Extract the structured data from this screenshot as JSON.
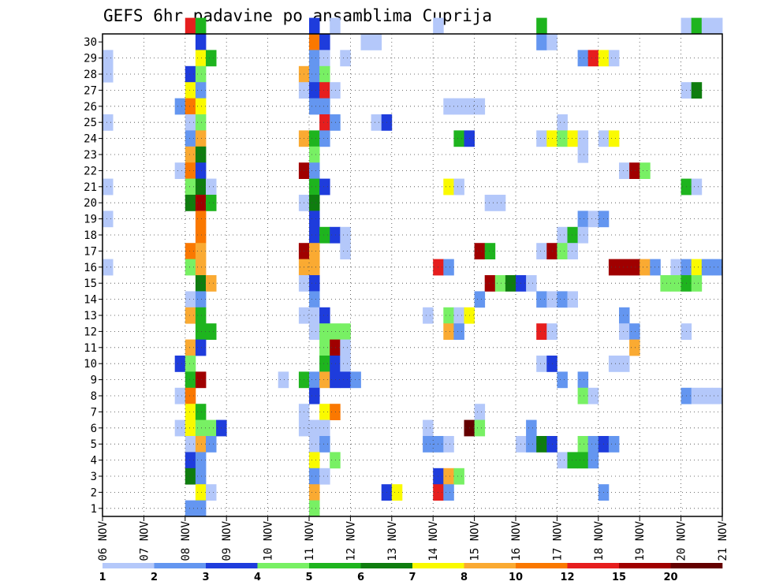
{
  "chart_data": {
    "type": "heatmap",
    "title": "GEFS 6hr padavine po ansamblima Cuprija",
    "xlabel": "",
    "ylabel": "",
    "x_tick_labels": [
      "06 NOV",
      "07 NOV",
      "08 NOV",
      "09 NOV",
      "10 NOV",
      "11 NOV",
      "12 NOV",
      "13 NOV",
      "14 NOV",
      "15 NOV",
      "16 NOV",
      "17 NOV",
      "18 NOV",
      "19 NOV",
      "20 NOV",
      "21 NOV"
    ],
    "y_tick_labels": [
      "1",
      "2",
      "3",
      "4",
      "5",
      "6",
      "7",
      "8",
      "9",
      "10",
      "11",
      "12",
      "13",
      "14",
      "15",
      "16",
      "17",
      "18",
      "19",
      "20",
      "21",
      "22",
      "23",
      "24",
      "25",
      "26",
      "27",
      "28",
      "29",
      "30"
    ],
    "x_range_6h_steps": [
      0,
      60
    ],
    "y_range": [
      0,
      30
    ],
    "grid": true,
    "colorbar": {
      "labels": [
        "1",
        "2",
        "3",
        "4",
        "5",
        "6",
        "7",
        "8",
        "10",
        "12",
        "15",
        "20"
      ],
      "colors": [
        "#b4c8fa",
        "#6496f0",
        "#1e3cdc",
        "#78f064",
        "#1eb41e",
        "#0f7d0f",
        "#fafa00",
        "#faaa32",
        "#fa7800",
        "#e61e1e",
        "#a00000",
        "#640000"
      ]
    },
    "cells": [
      [
        8,
        30,
        10
      ],
      [
        9,
        30,
        5
      ],
      [
        20,
        30,
        3
      ],
      [
        22,
        30,
        1
      ],
      [
        32,
        30,
        1
      ],
      [
        42,
        30,
        5
      ],
      [
        56,
        30,
        1
      ],
      [
        57,
        30,
        5
      ],
      [
        58,
        30,
        1
      ],
      [
        59,
        30,
        1
      ],
      [
        9,
        29,
        3
      ],
      [
        20,
        29,
        9
      ],
      [
        21,
        29,
        3
      ],
      [
        25,
        29,
        1
      ],
      [
        26,
        29,
        1
      ],
      [
        42,
        29,
        2
      ],
      [
        43,
        29,
        1
      ],
      [
        0,
        28,
        1
      ],
      [
        9,
        28,
        7
      ],
      [
        10,
        28,
        5
      ],
      [
        20,
        28,
        2
      ],
      [
        21,
        28,
        1
      ],
      [
        23,
        28,
        1
      ],
      [
        46,
        28,
        2
      ],
      [
        47,
        28,
        10
      ],
      [
        48,
        28,
        7
      ],
      [
        49,
        28,
        1
      ],
      [
        0,
        27,
        1
      ],
      [
        8,
        27,
        3
      ],
      [
        9,
        27,
        4
      ],
      [
        19,
        27,
        8
      ],
      [
        20,
        27,
        2
      ],
      [
        21,
        27,
        4
      ],
      [
        8,
        26,
        7
      ],
      [
        9,
        26,
        2
      ],
      [
        19,
        26,
        1
      ],
      [
        20,
        26,
        3
      ],
      [
        21,
        26,
        10
      ],
      [
        22,
        26,
        1
      ],
      [
        56,
        26,
        1
      ],
      [
        57,
        26,
        6
      ],
      [
        7,
        25,
        2
      ],
      [
        8,
        25,
        9
      ],
      [
        9,
        25,
        7
      ],
      [
        20,
        25,
        2
      ],
      [
        21,
        25,
        2
      ],
      [
        33,
        25,
        1
      ],
      [
        34,
        25,
        1
      ],
      [
        35,
        25,
        1
      ],
      [
        36,
        25,
        1
      ],
      [
        0,
        24,
        1
      ],
      [
        8,
        24,
        1
      ],
      [
        9,
        24,
        4
      ],
      [
        21,
        24,
        10
      ],
      [
        22,
        24,
        2
      ],
      [
        26,
        24,
        1
      ],
      [
        27,
        24,
        3
      ],
      [
        44,
        24,
        1
      ],
      [
        8,
        23,
        2
      ],
      [
        9,
        23,
        8
      ],
      [
        19,
        23,
        8
      ],
      [
        20,
        23,
        5
      ],
      [
        21,
        23,
        2
      ],
      [
        34,
        23,
        5
      ],
      [
        35,
        23,
        3
      ],
      [
        42,
        23,
        1
      ],
      [
        43,
        23,
        7
      ],
      [
        44,
        23,
        4
      ],
      [
        45,
        23,
        7
      ],
      [
        46,
        23,
        1
      ],
      [
        48,
        23,
        1
      ],
      [
        49,
        23,
        7
      ],
      [
        8,
        22,
        8
      ],
      [
        9,
        22,
        6
      ],
      [
        20,
        22,
        4
      ],
      [
        46,
        22,
        1
      ],
      [
        7,
        21,
        1
      ],
      [
        8,
        21,
        9
      ],
      [
        9,
        21,
        3
      ],
      [
        19,
        21,
        11
      ],
      [
        20,
        21,
        2
      ],
      [
        50,
        21,
        1
      ],
      [
        51,
        21,
        11
      ],
      [
        52,
        21,
        4
      ],
      [
        60,
        21,
        1
      ],
      [
        0,
        20,
        1
      ],
      [
        8,
        20,
        4
      ],
      [
        9,
        20,
        6
      ],
      [
        10,
        20,
        1
      ],
      [
        20,
        20,
        5
      ],
      [
        21,
        20,
        3
      ],
      [
        33,
        20,
        7
      ],
      [
        34,
        20,
        1
      ],
      [
        56,
        20,
        5
      ],
      [
        57,
        20,
        1
      ],
      [
        8,
        19,
        6
      ],
      [
        9,
        19,
        11
      ],
      [
        10,
        19,
        5
      ],
      [
        19,
        19,
        1
      ],
      [
        20,
        19,
        6
      ],
      [
        37,
        19,
        1
      ],
      [
        38,
        19,
        1
      ],
      [
        60,
        19,
        2
      ],
      [
        0,
        18,
        1
      ],
      [
        9,
        18,
        9
      ],
      [
        20,
        18,
        3
      ],
      [
        46,
        18,
        2
      ],
      [
        47,
        18,
        1
      ],
      [
        48,
        18,
        2
      ],
      [
        9,
        17,
        9
      ],
      [
        20,
        17,
        3
      ],
      [
        21,
        17,
        5
      ],
      [
        22,
        17,
        3
      ],
      [
        23,
        17,
        1
      ],
      [
        44,
        17,
        1
      ],
      [
        45,
        17,
        5
      ],
      [
        46,
        17,
        1
      ],
      [
        8,
        16,
        9
      ],
      [
        9,
        16,
        8
      ],
      [
        19,
        16,
        11
      ],
      [
        20,
        16,
        8
      ],
      [
        23,
        16,
        1
      ],
      [
        36,
        16,
        11
      ],
      [
        37,
        16,
        5
      ],
      [
        42,
        16,
        1
      ],
      [
        43,
        16,
        11
      ],
      [
        44,
        16,
        4
      ],
      [
        45,
        16,
        1
      ],
      [
        0,
        15,
        1
      ],
      [
        8,
        15,
        4
      ],
      [
        9,
        15,
        8
      ],
      [
        19,
        15,
        8
      ],
      [
        20,
        15,
        8
      ],
      [
        32,
        15,
        10
      ],
      [
        33,
        15,
        2
      ],
      [
        49,
        15,
        11
      ],
      [
        50,
        15,
        11
      ],
      [
        51,
        15,
        11
      ],
      [
        52,
        15,
        8
      ],
      [
        53,
        15,
        2
      ],
      [
        55,
        15,
        1
      ],
      [
        56,
        15,
        2
      ],
      [
        57,
        15,
        7
      ],
      [
        58,
        15,
        2
      ],
      [
        59,
        15,
        2
      ],
      [
        9,
        14,
        6
      ],
      [
        10,
        14,
        8
      ],
      [
        19,
        14,
        1
      ],
      [
        20,
        14,
        3
      ],
      [
        37,
        14,
        11
      ],
      [
        38,
        14,
        4
      ],
      [
        39,
        14,
        6
      ],
      [
        40,
        14,
        3
      ],
      [
        41,
        14,
        1
      ],
      [
        54,
        14,
        4
      ],
      [
        55,
        14,
        4
      ],
      [
        56,
        14,
        5
      ],
      [
        57,
        14,
        4
      ],
      [
        8,
        13,
        1
      ],
      [
        9,
        13,
        2
      ],
      [
        20,
        13,
        2
      ],
      [
        36,
        13,
        2
      ],
      [
        42,
        13,
        2
      ],
      [
        43,
        13,
        1
      ],
      [
        44,
        13,
        2
      ],
      [
        45,
        13,
        1
      ],
      [
        8,
        12,
        8
      ],
      [
        9,
        12,
        5
      ],
      [
        19,
        12,
        1
      ],
      [
        20,
        12,
        1
      ],
      [
        21,
        12,
        3
      ],
      [
        31,
        12,
        1
      ],
      [
        33,
        12,
        4
      ],
      [
        34,
        12,
        1
      ],
      [
        35,
        12,
        7
      ],
      [
        50,
        12,
        2
      ],
      [
        9,
        11,
        5
      ],
      [
        10,
        11,
        5
      ],
      [
        20,
        11,
        1
      ],
      [
        21,
        11,
        4
      ],
      [
        22,
        11,
        4
      ],
      [
        23,
        11,
        4
      ],
      [
        33,
        11,
        8
      ],
      [
        34,
        11,
        2
      ],
      [
        42,
        11,
        10
      ],
      [
        43,
        11,
        1
      ],
      [
        50,
        11,
        1
      ],
      [
        51,
        11,
        2
      ],
      [
        56,
        11,
        1
      ],
      [
        8,
        10,
        8
      ],
      [
        9,
        10,
        3
      ],
      [
        21,
        10,
        4
      ],
      [
        22,
        10,
        11
      ],
      [
        23,
        10,
        1
      ],
      [
        51,
        10,
        8
      ],
      [
        7,
        9,
        3
      ],
      [
        8,
        9,
        4
      ],
      [
        21,
        9,
        5
      ],
      [
        22,
        9,
        3
      ],
      [
        23,
        9,
        1
      ],
      [
        42,
        9,
        1
      ],
      [
        43,
        9,
        3
      ],
      [
        49,
        9,
        1
      ],
      [
        50,
        9,
        1
      ],
      [
        8,
        8,
        5
      ],
      [
        9,
        8,
        11
      ],
      [
        17,
        8,
        1
      ],
      [
        19,
        8,
        5
      ],
      [
        20,
        8,
        2
      ],
      [
        21,
        8,
        8
      ],
      [
        22,
        8,
        3
      ],
      [
        23,
        8,
        3
      ],
      [
        24,
        8,
        2
      ],
      [
        44,
        8,
        2
      ],
      [
        46,
        8,
        2
      ],
      [
        7,
        7,
        1
      ],
      [
        8,
        7,
        9
      ],
      [
        20,
        7,
        3
      ],
      [
        46,
        7,
        4
      ],
      [
        47,
        7,
        1
      ],
      [
        56,
        7,
        2
      ],
      [
        57,
        7,
        1
      ],
      [
        58,
        7,
        1
      ],
      [
        59,
        7,
        1
      ],
      [
        8,
        6,
        7
      ],
      [
        9,
        6,
        5
      ],
      [
        19,
        6,
        1
      ],
      [
        21,
        6,
        7
      ],
      [
        22,
        6,
        9
      ],
      [
        36,
        6,
        1
      ],
      [
        7,
        5,
        1
      ],
      [
        8,
        5,
        7
      ],
      [
        9,
        5,
        4
      ],
      [
        10,
        5,
        4
      ],
      [
        11,
        5,
        3
      ],
      [
        19,
        5,
        1
      ],
      [
        20,
        5,
        1
      ],
      [
        21,
        5,
        1
      ],
      [
        31,
        5,
        1
      ],
      [
        35,
        5,
        12
      ],
      [
        36,
        5,
        4
      ],
      [
        41,
        5,
        2
      ],
      [
        8,
        4,
        1
      ],
      [
        9,
        4,
        8
      ],
      [
        10,
        4,
        2
      ],
      [
        20,
        4,
        1
      ],
      [
        21,
        4,
        2
      ],
      [
        31,
        4,
        2
      ],
      [
        32,
        4,
        2
      ],
      [
        33,
        4,
        1
      ],
      [
        40,
        4,
        1
      ],
      [
        41,
        4,
        2
      ],
      [
        42,
        4,
        6
      ],
      [
        43,
        4,
        3
      ],
      [
        46,
        4,
        4
      ],
      [
        47,
        4,
        2
      ],
      [
        48,
        4,
        3
      ],
      [
        49,
        4,
        2
      ],
      [
        8,
        3,
        3
      ],
      [
        9,
        3,
        2
      ],
      [
        20,
        3,
        7
      ],
      [
        22,
        3,
        4
      ],
      [
        44,
        3,
        1
      ],
      [
        45,
        3,
        5
      ],
      [
        46,
        3,
        5
      ],
      [
        47,
        3,
        2
      ],
      [
        8,
        2,
        6
      ],
      [
        9,
        2,
        2
      ],
      [
        20,
        2,
        2
      ],
      [
        21,
        2,
        1
      ],
      [
        32,
        2,
        3
      ],
      [
        33,
        2,
        8
      ],
      [
        34,
        2,
        4
      ],
      [
        9,
        1,
        7
      ],
      [
        10,
        1,
        1
      ],
      [
        20,
        1,
        8
      ],
      [
        27,
        1,
        3
      ],
      [
        28,
        1,
        7
      ],
      [
        32,
        1,
        10
      ],
      [
        33,
        1,
        2
      ],
      [
        48,
        1,
        2
      ],
      [
        8,
        0,
        2
      ],
      [
        9,
        0,
        2
      ],
      [
        20,
        0,
        4
      ]
    ]
  }
}
